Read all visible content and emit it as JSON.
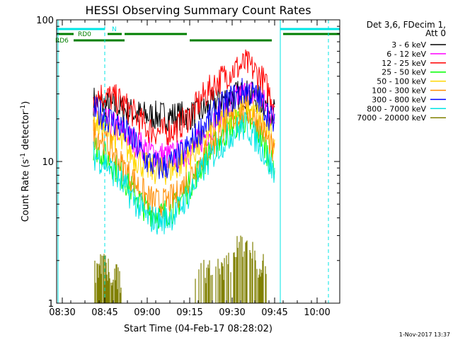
{
  "chart_data": {
    "type": "line",
    "title": "HESSI Observing Summary Count Rates",
    "xlabel": "Start Time (04-Feb-17 08:28:02)",
    "ylabel_main": "Count Rate (s",
    "ylabel_sup1": "-1",
    "ylabel_mid": " detector",
    "ylabel_sup2": "-1",
    "ylabel_end": ")",
    "y_scale": "log",
    "ylim": [
      1,
      100
    ],
    "xlim": [
      "08:28",
      "10:08"
    ],
    "x_ticks": [
      "08:30",
      "08:45",
      "09:00",
      "09:15",
      "09:30",
      "09:45",
      "10:00"
    ],
    "y_ticks": [
      "1",
      "10",
      "100"
    ],
    "detector_info_line1": "Det 3,6, FDecim 1,",
    "detector_info_line2": "Att 0",
    "footer_date": "1-Nov-2017 13:37",
    "state_labels": {
      "night": "N",
      "rd0": "RD0",
      "rd6": "RD6"
    },
    "state_bars": {
      "night": {
        "color": "#00e5e5",
        "segments": [
          [
            "08:28",
            "08:45"
          ],
          [
            "09:47",
            "10:08"
          ]
        ]
      },
      "rd0": {
        "color": "#007f00",
        "segments": [
          [
            "08:28",
            "08:34"
          ],
          [
            "08:46",
            "08:51"
          ],
          [
            "08:52",
            "09:14"
          ],
          [
            "09:48",
            "10:08"
          ]
        ]
      },
      "rd6": {
        "color": "#007f00",
        "segments": [
          [
            "08:34",
            "08:52"
          ],
          [
            "09:15",
            "09:44"
          ]
        ]
      }
    },
    "boundaries": [
      {
        "time": "08:45",
        "style": "dashed",
        "color": "#00e5e5"
      },
      {
        "time": "09:47",
        "style": "solid",
        "color": "#00e5e5"
      },
      {
        "time": "10:04",
        "style": "dashed",
        "color": "#00e5e5"
      }
    ],
    "series": [
      {
        "name": "3 - 6 keV",
        "color": "#000000",
        "x": [
          "08:41",
          "08:45",
          "08:50",
          "08:55",
          "09:00",
          "09:05",
          "09:10",
          "09:15",
          "09:20",
          "09:25",
          "09:30",
          "09:35",
          "09:40",
          "09:45"
        ],
        "y": [
          27,
          25,
          24,
          22,
          21,
          21,
          21,
          21,
          23,
          27,
          29,
          30,
          27,
          22
        ]
      },
      {
        "name": "6 - 12 keV",
        "color": "#ff00ff",
        "x": [
          "08:41",
          "08:45",
          "08:50",
          "08:55",
          "09:00",
          "09:05",
          "09:10",
          "09:15",
          "09:20",
          "09:25",
          "09:30",
          "09:35",
          "09:40",
          "09:45"
        ],
        "y": [
          21,
          19,
          17,
          14,
          12,
          11,
          11,
          12,
          15,
          20,
          26,
          31,
          28,
          20
        ]
      },
      {
        "name": "12 - 25 keV",
        "color": "#ff0000",
        "x": [
          "08:41",
          "08:45",
          "08:50",
          "08:55",
          "09:00",
          "09:05",
          "09:10",
          "09:15",
          "09:20",
          "09:25",
          "09:30",
          "09:35",
          "09:40",
          "09:45"
        ],
        "y": [
          30,
          29,
          27,
          22,
          17,
          16,
          17,
          21,
          29,
          37,
          44,
          49,
          40,
          26
        ]
      },
      {
        "name": "25 - 50 keV",
        "color": "#00ff00",
        "x": [
          "08:41",
          "08:45",
          "08:50",
          "08:55",
          "09:00",
          "09:05",
          "09:10",
          "09:15",
          "09:20",
          "09:25",
          "09:30",
          "09:35",
          "09:40",
          "09:45"
        ],
        "y": [
          13,
          11,
          8.5,
          6.2,
          4.5,
          4.2,
          4.8,
          6.8,
          10,
          14,
          18,
          20,
          15,
          9
        ]
      },
      {
        "name": "50 - 100 keV",
        "color": "#ffd700",
        "x": [
          "08:41",
          "08:45",
          "08:50",
          "08:55",
          "09:00",
          "09:05",
          "09:10",
          "09:15",
          "09:20",
          "09:25",
          "09:30",
          "09:35",
          "09:40",
          "09:45"
        ],
        "y": [
          19,
          17,
          14,
          11,
          9,
          8.5,
          9,
          11,
          14,
          18,
          22,
          24,
          20,
          13
        ]
      },
      {
        "name": "100 - 300 keV",
        "color": "#ff8c00",
        "x": [
          "08:41",
          "08:45",
          "08:50",
          "08:55",
          "09:00",
          "09:05",
          "09:10",
          "09:15",
          "09:20",
          "09:25",
          "09:30",
          "09:35",
          "09:40",
          "09:45"
        ],
        "y": [
          16,
          14,
          10,
          7.5,
          5.5,
          5,
          5.6,
          7.8,
          11,
          15,
          20,
          23,
          18,
          11
        ]
      },
      {
        "name": "300 - 800 keV",
        "color": "#0000ff",
        "x": [
          "08:41",
          "08:45",
          "08:50",
          "08:55",
          "09:00",
          "09:05",
          "09:10",
          "09:15",
          "09:20",
          "09:25",
          "09:30",
          "09:35",
          "09:40",
          "09:45"
        ],
        "y": [
          23,
          21,
          18,
          14,
          10,
          9,
          10,
          13,
          18,
          23,
          28,
          32,
          27,
          18
        ]
      },
      {
        "name": "800 - 7000 keV",
        "color": "#00e5e5",
        "x": [
          "08:41",
          "08:45",
          "08:50",
          "08:55",
          "09:00",
          "09:05",
          "09:10",
          "09:15",
          "09:20",
          "09:25",
          "09:30",
          "09:35",
          "09:40",
          "09:45"
        ],
        "y": [
          11,
          10,
          7.5,
          5.5,
          4,
          3.8,
          4.3,
          6,
          9,
          12.5,
          16,
          18,
          13,
          8
        ]
      },
      {
        "name": "7000 - 20000 keV",
        "color": "#808000",
        "x": [
          "08:41",
          "08:44",
          "08:47",
          "08:50",
          "09:18",
          "09:27",
          "09:30",
          "09:33",
          "09:36",
          "09:39",
          "09:42"
        ],
        "y": [
          1.6,
          1.8,
          1.6,
          1.4,
          1.5,
          1.8,
          2.0,
          2.6,
          2.4,
          1.9,
          1.7
        ]
      }
    ]
  }
}
